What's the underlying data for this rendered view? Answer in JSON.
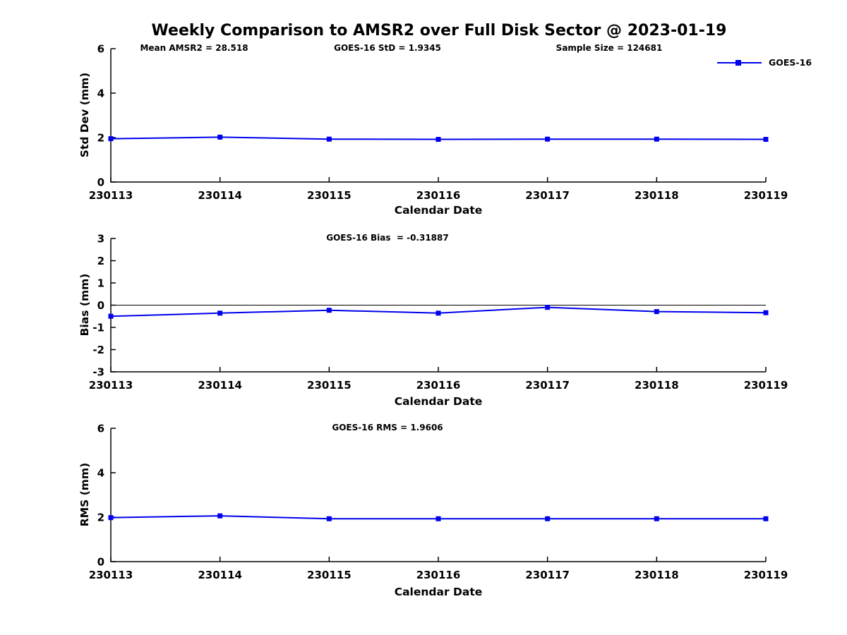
{
  "title": "Weekly Comparison to AMSR2 over Full Disk Sector @ 2023-01-19",
  "legend": {
    "label": "GOES-16",
    "color": "#0000EE",
    "marker": "square"
  },
  "annotations": {
    "mean_amsr2": "Mean AMSR2 = 28.518",
    "goes_std": "GOES-16 StD = 1.9345",
    "sample_size": "Sample Size = 124681",
    "goes_bias": "GOES-16 Bias  = -0.31887",
    "goes_rms": "GOES-16 RMS = 1.9606"
  },
  "chart_data": [
    {
      "type": "line",
      "name": "std-dev",
      "xlabel": "Calendar Date",
      "ylabel": "Std Dev (mm)",
      "ylim": [
        0,
        6
      ],
      "yticks": [
        0,
        2,
        4,
        6
      ],
      "categories": [
        "230113",
        "230114",
        "230115",
        "230116",
        "230117",
        "230118",
        "230119"
      ],
      "grid": false,
      "legend_position": "top-right-outside",
      "series": [
        {
          "name": "GOES-16",
          "values": [
            1.95,
            2.02,
            1.93,
            1.92,
            1.93,
            1.93,
            1.92
          ]
        }
      ]
    },
    {
      "type": "line",
      "name": "bias",
      "xlabel": "Calendar Date",
      "ylabel": "Bias (mm)",
      "ylim": [
        -3,
        3
      ],
      "yticks": [
        -3,
        -2,
        -1,
        0,
        1,
        2,
        3
      ],
      "zero_line": true,
      "categories": [
        "230113",
        "230114",
        "230115",
        "230116",
        "230117",
        "230118",
        "230119"
      ],
      "grid": false,
      "series": [
        {
          "name": "GOES-16",
          "values": [
            -0.5,
            -0.36,
            -0.23,
            -0.36,
            -0.1,
            -0.29,
            -0.34
          ]
        }
      ]
    },
    {
      "type": "line",
      "name": "rms",
      "xlabel": "Calendar Date",
      "ylabel": "RMS (mm)",
      "ylim": [
        0,
        6
      ],
      "yticks": [
        0,
        2,
        4,
        6
      ],
      "categories": [
        "230113",
        "230114",
        "230115",
        "230116",
        "230117",
        "230118",
        "230119"
      ],
      "grid": false,
      "series": [
        {
          "name": "GOES-16",
          "values": [
            1.98,
            2.06,
            1.93,
            1.93,
            1.93,
            1.93,
            1.93
          ]
        }
      ]
    }
  ]
}
